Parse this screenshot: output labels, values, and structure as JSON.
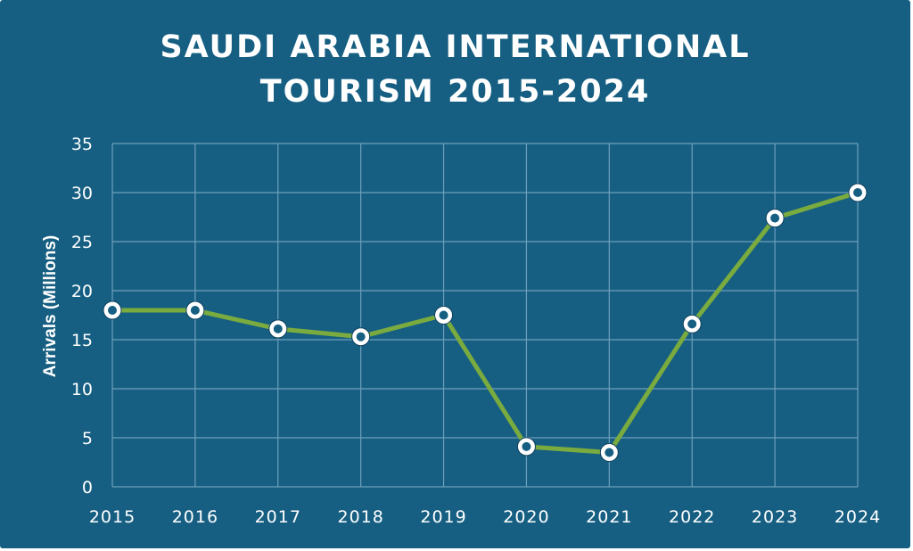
{
  "chart_data": {
    "type": "line",
    "title_lines": [
      "SAUDI ARABIA INTERNATIONAL",
      "TOURISM 2015-2024"
    ],
    "xlabel": "",
    "ylabel": "Arrivals (Millions)",
    "x": [
      "2015",
      "2016",
      "2017",
      "2018",
      "2019",
      "2020",
      "2021",
      "2022",
      "2023",
      "2024"
    ],
    "series": [
      {
        "values": [
          18.0,
          18.0,
          16.1,
          15.3,
          17.5,
          4.1,
          3.5,
          16.6,
          27.4,
          30.0
        ]
      }
    ],
    "y_ticks": [
      0,
      5,
      10,
      15,
      20,
      25,
      30,
      35
    ],
    "ylim": [
      0,
      35
    ],
    "grid": true,
    "colors": {
      "background": "#165f82",
      "line": "#7aab3f",
      "marker": "#ffffff",
      "grid": "#6f9fbd",
      "text": "#ffffff"
    }
  }
}
